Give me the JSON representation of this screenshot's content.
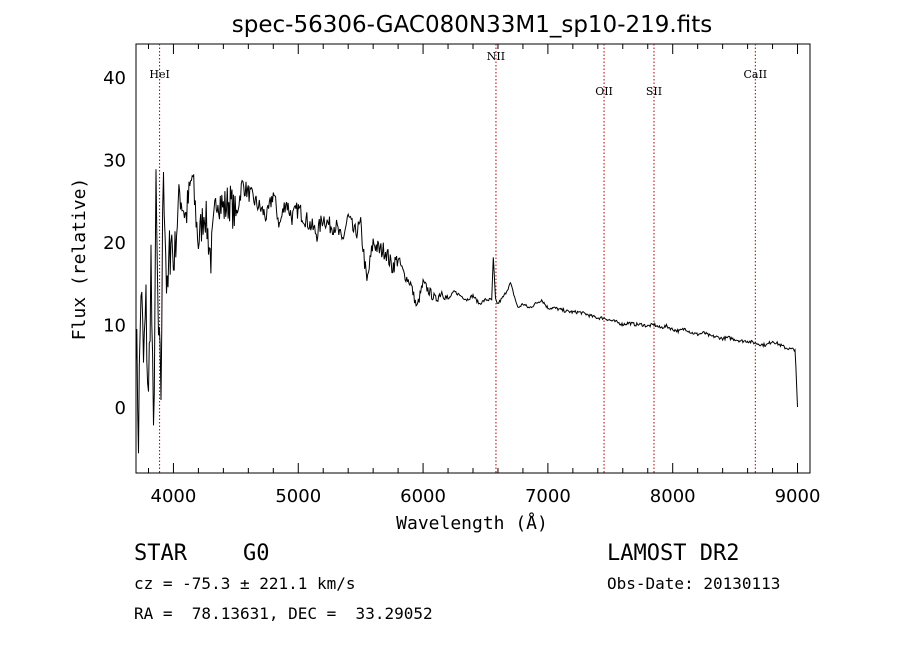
{
  "chart_data": {
    "type": "line",
    "title": "spec-56306-GAC080N33M1_sp10-219.fits",
    "xlabel": "Wavelength (Å)",
    "ylabel": "Flux (relative)",
    "xlim": [
      3700,
      9100
    ],
    "ylim": [
      -8,
      44
    ],
    "xticks": [
      4000,
      5000,
      6000,
      7000,
      8000,
      9000
    ],
    "yticks": [
      0,
      10,
      20,
      30,
      40
    ],
    "grid": false,
    "series": [
      {
        "x": [
          3700,
          3720,
          3740,
          3760,
          3780,
          3800,
          3820,
          3840,
          3860,
          3880,
          3900,
          3920,
          3950,
          3980,
          4000,
          4050,
          4100,
          4150,
          4200,
          4250,
          4300,
          4350,
          4400,
          4450,
          4500,
          4550,
          4600,
          4650,
          4700,
          4750,
          4800,
          4850,
          4900,
          4950,
          5000,
          5050,
          5100,
          5150,
          5200,
          5250,
          5300,
          5350,
          5400,
          5450,
          5500,
          5550,
          5600,
          5650,
          5700,
          5750,
          5800,
          5850,
          5900,
          5950,
          6000,
          6050,
          6100,
          6150,
          6200,
          6250,
          6300,
          6350,
          6400,
          6450,
          6500,
          6550,
          6563,
          6580,
          6600,
          6650,
          6700,
          6720,
          6740,
          6760,
          6800,
          6850,
          6900,
          6950,
          7000,
          7050,
          7100,
          7150,
          7200,
          7250,
          7300,
          7350,
          7400,
          7450,
          7500,
          7550,
          7600,
          7650,
          7700,
          7750,
          7800,
          7850,
          7900,
          7950,
          8000,
          8050,
          8100,
          8150,
          8200,
          8250,
          8300,
          8350,
          8400,
          8450,
          8500,
          8550,
          8600,
          8650,
          8700,
          8750,
          8800,
          8850,
          8900,
          8950,
          8980,
          9000
        ],
        "y": [
          10,
          -3,
          15,
          5,
          12,
          0,
          18,
          -5,
          25,
          8,
          2,
          30,
          12,
          22,
          17,
          26,
          23,
          28,
          20,
          24,
          18,
          26,
          24,
          25,
          23,
          27,
          26,
          25,
          24,
          23,
          26,
          22,
          25,
          23,
          24,
          23,
          22,
          21,
          23,
          22,
          22,
          20,
          23,
          21,
          22,
          15,
          20,
          19,
          19,
          17,
          18,
          16,
          15,
          12,
          15,
          14,
          13,
          14,
          13,
          14,
          13.5,
          13,
          13.5,
          12.5,
          13,
          13,
          18,
          13,
          12.5,
          13.5,
          15,
          14,
          13,
          12,
          12.5,
          12,
          12.5,
          13,
          12,
          12,
          11.8,
          11.6,
          11.5,
          11.5,
          11.3,
          11,
          10.8,
          10.8,
          10.5,
          10.3,
          10,
          10.2,
          10,
          10,
          9.8,
          10,
          9.6,
          9.8,
          9.4,
          9.2,
          9.5,
          9,
          8.8,
          9,
          8.6,
          8.5,
          8.3,
          8.4,
          8.2,
          8,
          8,
          7.8,
          7.6,
          7.5,
          8,
          7.6,
          7.2,
          7,
          7,
          0
        ]
      }
    ],
    "lines": [
      {
        "label": "HeI",
        "x": 3889
      },
      {
        "label": "NII",
        "x": 6584
      },
      {
        "label": "OII",
        "x": 7450
      },
      {
        "label": "SII",
        "x": 7850
      },
      {
        "label": "CaII",
        "x": 8662
      }
    ]
  },
  "info": {
    "class": "STAR",
    "subclass": "G0",
    "survey": "LAMOST DR2",
    "cz": "cz = -75.3 ± 221.1 km/s",
    "obs_date": "Obs-Date: 20130113",
    "coords": "RA =  78.13631, DEC =  33.29052"
  }
}
